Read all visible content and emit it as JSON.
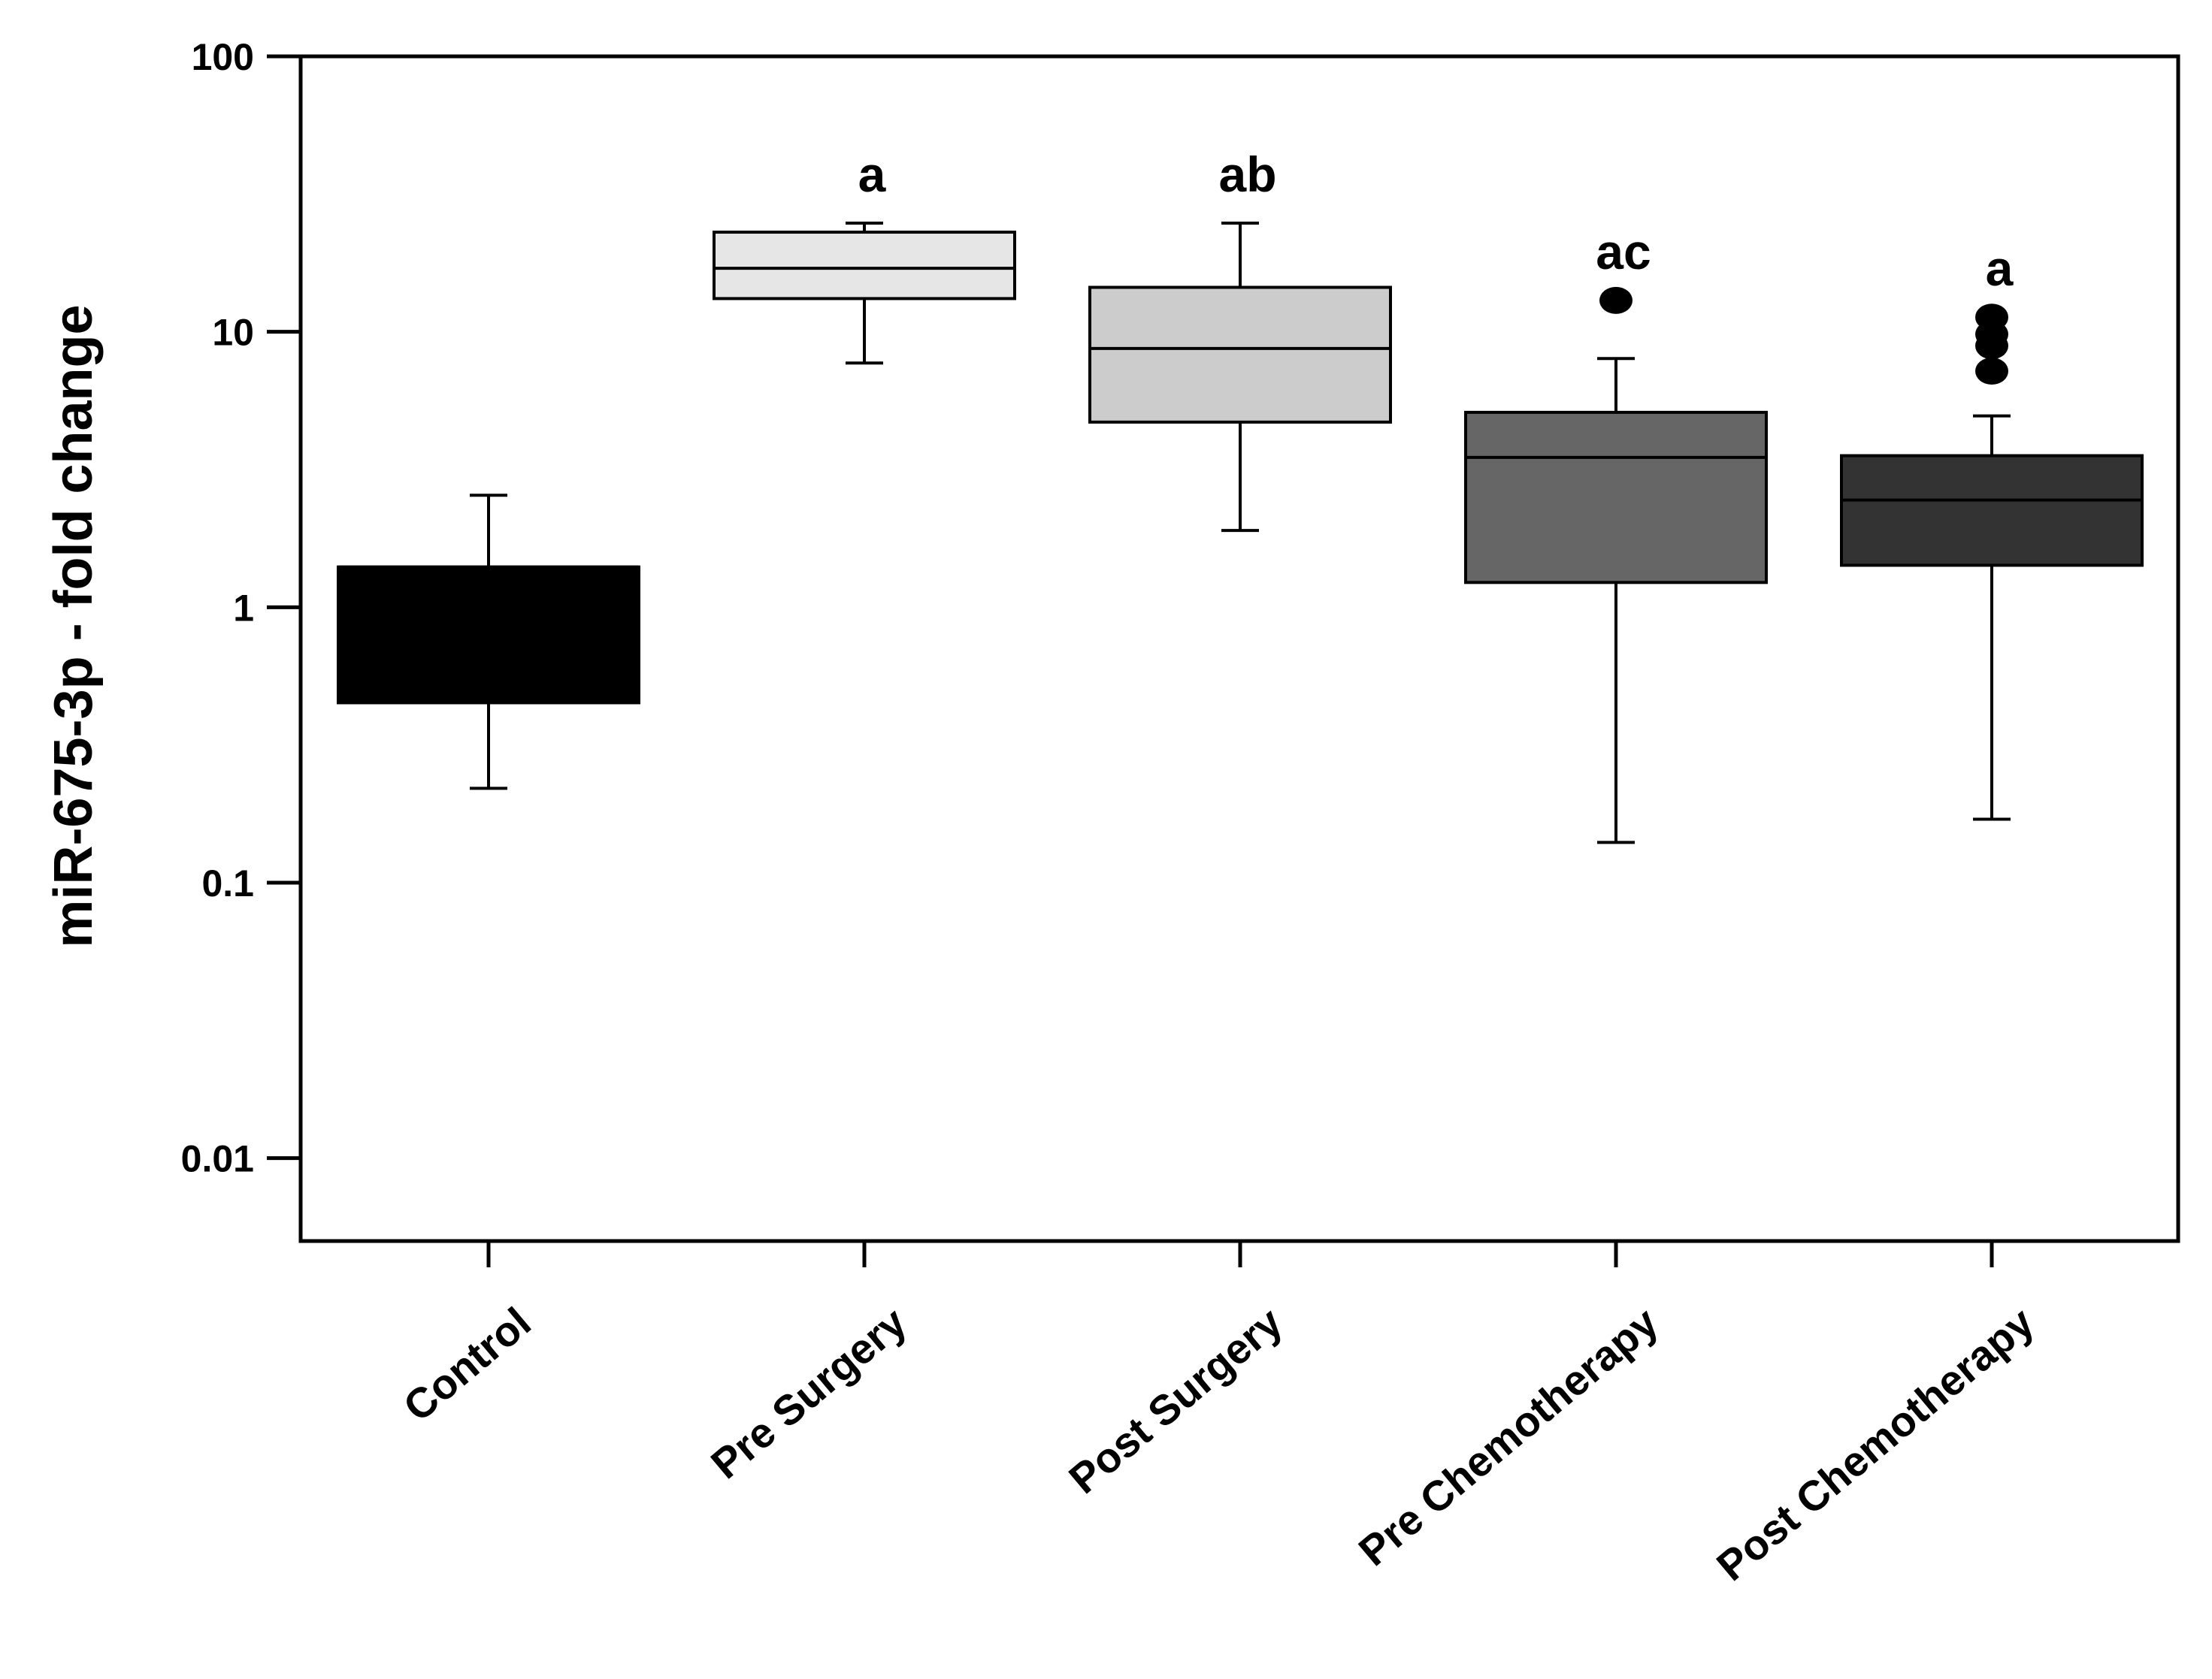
{
  "chart_data": {
    "type": "box",
    "title": "",
    "xlabel": "",
    "ylabel": "miR-675-3p - fold change",
    "yscale": "log",
    "ylim": [
      0.005,
      100
    ],
    "yticks": [
      0.01,
      0.1,
      1,
      10,
      100
    ],
    "ytick_labels": [
      "0.01",
      "0.1",
      "1",
      "10",
      "100"
    ],
    "grid": false,
    "categories": [
      "Control",
      "Pre Surgery",
      "Post Surgery",
      "Pre Chemotherapy",
      "Post Chemotherapy"
    ],
    "boxes": [
      {
        "name": "Control",
        "whisker_low": 0.22,
        "q1": 0.45,
        "median": 1.4,
        "q3": 1.4,
        "whisker_high": 2.55,
        "outliers": [],
        "color": "#000000",
        "annotation": ""
      },
      {
        "name": "Pre Surgery",
        "whisker_low": 7.7,
        "q1": 13.2,
        "median": 17.0,
        "q3": 23.0,
        "whisker_high": 24.8,
        "outliers": [],
        "color": "#e6e6e6",
        "annotation": "a"
      },
      {
        "name": "Post Surgery",
        "whisker_low": 1.9,
        "q1": 4.7,
        "median": 8.7,
        "q3": 14.5,
        "whisker_high": 24.8,
        "outliers": [],
        "color": "#cccccc",
        "annotation": "ab"
      },
      {
        "name": "Pre Chemotherapy",
        "whisker_low": 0.14,
        "q1": 1.23,
        "median": 3.5,
        "q3": 5.1,
        "whisker_high": 8.0,
        "outliers": [
          13.0
        ],
        "color": "#666666",
        "annotation": "ac"
      },
      {
        "name": "Post Chemotherapy",
        "whisker_low": 0.17,
        "q1": 1.42,
        "median": 2.45,
        "q3": 3.55,
        "whisker_high": 4.95,
        "outliers": [
          7.2,
          8.9,
          9.8,
          11.3
        ],
        "color": "#333333",
        "annotation": "a"
      }
    ]
  }
}
